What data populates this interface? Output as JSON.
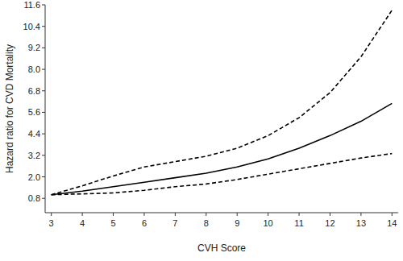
{
  "chart_data": {
    "type": "line",
    "x_label": "CVH Score",
    "y_label": "Hazard ratio for CVD Mortality",
    "x": [
      3,
      4,
      5,
      6,
      7,
      8,
      9,
      10,
      11,
      12,
      13,
      14
    ],
    "series": [
      {
        "color": "#000000",
        "line_style": "solid",
        "values": [
          1.0,
          1.2,
          1.45,
          1.7,
          1.95,
          2.2,
          2.55,
          3.0,
          3.6,
          4.3,
          5.1,
          6.1
        ]
      },
      {
        "color": "#000000",
        "line_style": "dashed",
        "values": [
          1.0,
          1.5,
          2.05,
          2.55,
          2.85,
          3.15,
          3.6,
          4.3,
          5.3,
          6.7,
          8.7,
          11.3
        ]
      },
      {
        "color": "#000000",
        "line_style": "dashed",
        "values": [
          1.0,
          1.05,
          1.1,
          1.25,
          1.45,
          1.6,
          1.85,
          2.15,
          2.45,
          2.75,
          3.05,
          3.3
        ]
      }
    ],
    "xlim": [
      2.8,
      14.2
    ],
    "ylim": [
      0,
      11.6
    ],
    "xticks": [
      3,
      4,
      5,
      6,
      7,
      8,
      9,
      10,
      11,
      12,
      13,
      14
    ],
    "yticks": [
      0.8,
      {
        "value": 2,
        "label": "2.0"
      },
      3.2,
      4.4,
      5.6,
      6.8,
      {
        "value": 8,
        "label": "8.0"
      },
      9.2,
      10.4,
      11.6
    ],
    "grid": false
  }
}
